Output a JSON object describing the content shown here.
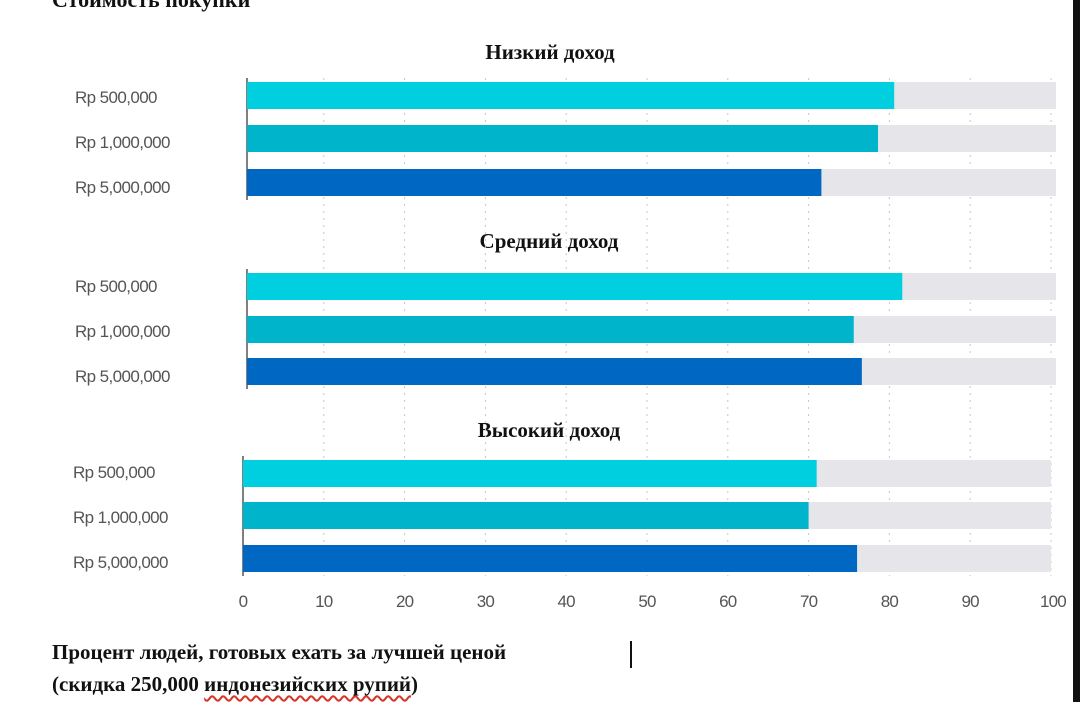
{
  "chart_data": {
    "type": "bar",
    "orientation": "horizontal",
    "title": "Стоимость покупки",
    "xlabel": "Процент людей, готовых ехать за лучшей ценой",
    "xlabel_line2_a": "(скидка 250,000",
    "xlabel_line2_b": "индонезийских рупий",
    "xlabel_line2_c": ")",
    "xlim": [
      0,
      100
    ],
    "xticks": [
      "0",
      "10",
      "20",
      "30",
      "40",
      "50",
      "60",
      "70",
      "80",
      "90",
      "100"
    ],
    "categories": [
      "Rp 500,000",
      "Rp 1,000,000",
      "Rp 5,000,000"
    ],
    "panels": [
      {
        "title": "Низкий доход",
        "values": [
          80,
          78,
          71
        ]
      },
      {
        "title": "Средний доход",
        "values": [
          81,
          75,
          76
        ]
      },
      {
        "title": "Высокий доход",
        "values": [
          71,
          70,
          76
        ]
      }
    ],
    "colors": [
      "#00cfe0",
      "#00b5cb",
      "#0067c2"
    ],
    "track_color": "#e6e6ea",
    "grid": true
  }
}
